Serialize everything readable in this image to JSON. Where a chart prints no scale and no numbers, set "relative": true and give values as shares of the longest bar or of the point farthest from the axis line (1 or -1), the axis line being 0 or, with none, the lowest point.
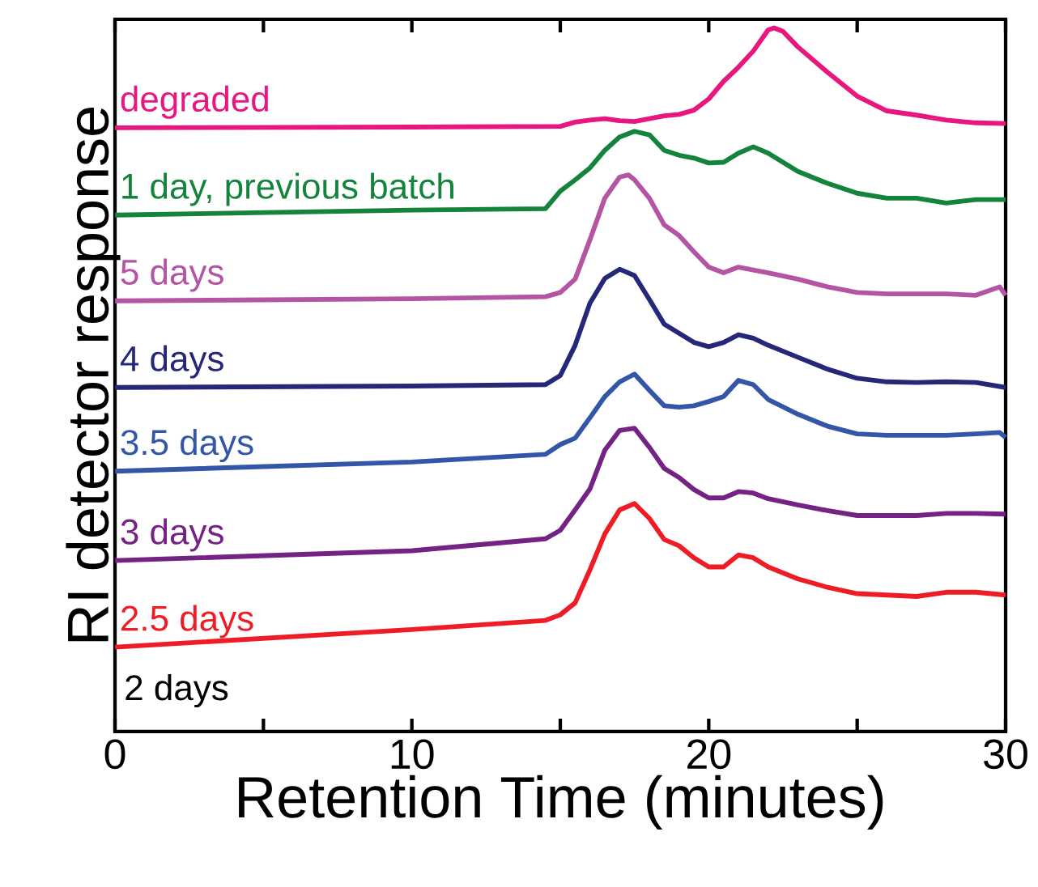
{
  "chart_data": {
    "type": "line",
    "relative": true,
    "xlabel": "Retention Time (minutes)",
    "ylabel": "RI detector response",
    "xlim": [
      0,
      30
    ],
    "xticks": [
      0,
      {
        "value": 5,
        "label": null
      },
      10,
      {
        "value": 15,
        "label": null
      },
      20,
      {
        "value": 25,
        "label": null
      },
      30
    ],
    "marker": "none",
    "line_style": "solid",
    "annotations": [
      "2 days"
    ],
    "series": [
      {
        "name": "degraded",
        "color": "#e8177f",
        "x": [
          0,
          10,
          15,
          15.5,
          16,
          16.5,
          17,
          17.5,
          18,
          18.5,
          19,
          19.5,
          20,
          20.5,
          21,
          21.5,
          22,
          22.2,
          22.5,
          23,
          24,
          25,
          26,
          27,
          28,
          29,
          30
        ],
        "values": [
          0.858,
          0.859,
          0.86,
          0.866,
          0.869,
          0.871,
          0.868,
          0.867,
          0.871,
          0.875,
          0.877,
          0.883,
          0.899,
          0.924,
          0.944,
          0.967,
          0.997,
          1.0,
          0.995,
          0.973,
          0.937,
          0.903,
          0.882,
          0.876,
          0.869,
          0.865,
          0.864
        ]
      },
      {
        "name": "1 day, previous batch",
        "color": "#14833b",
        "x": [
          0,
          10,
          14.5,
          15,
          15.5,
          16,
          16.5,
          17,
          17.5,
          18,
          18.5,
          19,
          19.5,
          20,
          20.5,
          21,
          21.5,
          22,
          23,
          24,
          25,
          26,
          27,
          28,
          29,
          30
        ],
        "values": [
          0.734,
          0.741,
          0.743,
          0.768,
          0.784,
          0.801,
          0.826,
          0.845,
          0.853,
          0.848,
          0.826,
          0.819,
          0.815,
          0.808,
          0.809,
          0.822,
          0.831,
          0.822,
          0.796,
          0.779,
          0.765,
          0.758,
          0.758,
          0.751,
          0.756,
          0.756
        ]
      },
      {
        "name": "5 days",
        "color": "#b455a4",
        "x": [
          0,
          10,
          14.5,
          15,
          15.5,
          16,
          16.5,
          17,
          17.3,
          17.5,
          18,
          18.5,
          19,
          19.5,
          20,
          20.5,
          21,
          21.5,
          22,
          23,
          24,
          25,
          26,
          27,
          28,
          29,
          29.8,
          30
        ],
        "values": [
          0.612,
          0.615,
          0.618,
          0.624,
          0.643,
          0.699,
          0.758,
          0.788,
          0.791,
          0.784,
          0.758,
          0.72,
          0.705,
          0.682,
          0.66,
          0.652,
          0.66,
          0.656,
          0.652,
          0.643,
          0.632,
          0.624,
          0.622,
          0.622,
          0.622,
          0.62,
          0.632,
          0.62
        ]
      },
      {
        "name": "4 days",
        "color": "#252778",
        "x": [
          0,
          10,
          14.5,
          15,
          15.5,
          16,
          16.5,
          17,
          17.5,
          18,
          18.5,
          19,
          19.5,
          20,
          20.5,
          21,
          21.5,
          22,
          23,
          24,
          25,
          26,
          27,
          28,
          29,
          30
        ],
        "values": [
          0.489,
          0.491,
          0.493,
          0.506,
          0.549,
          0.609,
          0.644,
          0.657,
          0.648,
          0.614,
          0.579,
          0.566,
          0.553,
          0.547,
          0.553,
          0.564,
          0.559,
          0.549,
          0.532,
          0.515,
          0.502,
          0.497,
          0.496,
          0.497,
          0.496,
          0.489
        ]
      },
      {
        "name": "3.5 days",
        "color": "#3356a8",
        "x": [
          0,
          10,
          14.5,
          15,
          15.5,
          16,
          16.5,
          17,
          17.5,
          18,
          18.5,
          19,
          19.5,
          20,
          20.5,
          21,
          21.5,
          22,
          23,
          24,
          25,
          26,
          27,
          28,
          29,
          29.8,
          30
        ],
        "values": [
          0.37,
          0.383,
          0.394,
          0.408,
          0.417,
          0.446,
          0.476,
          0.497,
          0.508,
          0.485,
          0.463,
          0.461,
          0.463,
          0.469,
          0.476,
          0.499,
          0.493,
          0.472,
          0.451,
          0.434,
          0.423,
          0.421,
          0.421,
          0.421,
          0.423,
          0.425,
          0.418
        ]
      },
      {
        "name": "3 days",
        "color": "#742283",
        "x": [
          0,
          10,
          14.5,
          15,
          15.5,
          16,
          16.5,
          17,
          17.5,
          18,
          18.5,
          19,
          19.5,
          20,
          20.5,
          21,
          21.5,
          22,
          23,
          24,
          25,
          26,
          27,
          28,
          29,
          30
        ],
        "values": [
          0.243,
          0.257,
          0.274,
          0.286,
          0.315,
          0.345,
          0.4,
          0.428,
          0.431,
          0.404,
          0.374,
          0.361,
          0.344,
          0.332,
          0.332,
          0.341,
          0.339,
          0.331,
          0.322,
          0.314,
          0.307,
          0.307,
          0.307,
          0.31,
          0.31,
          0.309
        ]
      },
      {
        "name": "2.5 days",
        "color": "#ee1c24",
        "x": [
          0,
          10,
          14.5,
          15,
          15.5,
          16,
          16.5,
          17,
          17.5,
          18,
          18.5,
          19,
          19.5,
          20,
          20.5,
          21,
          21.5,
          22,
          23,
          24,
          25,
          26,
          27,
          28,
          29,
          30
        ],
        "values": [
          0.12,
          0.145,
          0.158,
          0.166,
          0.183,
          0.23,
          0.281,
          0.315,
          0.324,
          0.303,
          0.273,
          0.264,
          0.247,
          0.234,
          0.234,
          0.251,
          0.247,
          0.234,
          0.217,
          0.205,
          0.196,
          0.194,
          0.192,
          0.198,
          0.198,
          0.194
        ]
      }
    ]
  }
}
